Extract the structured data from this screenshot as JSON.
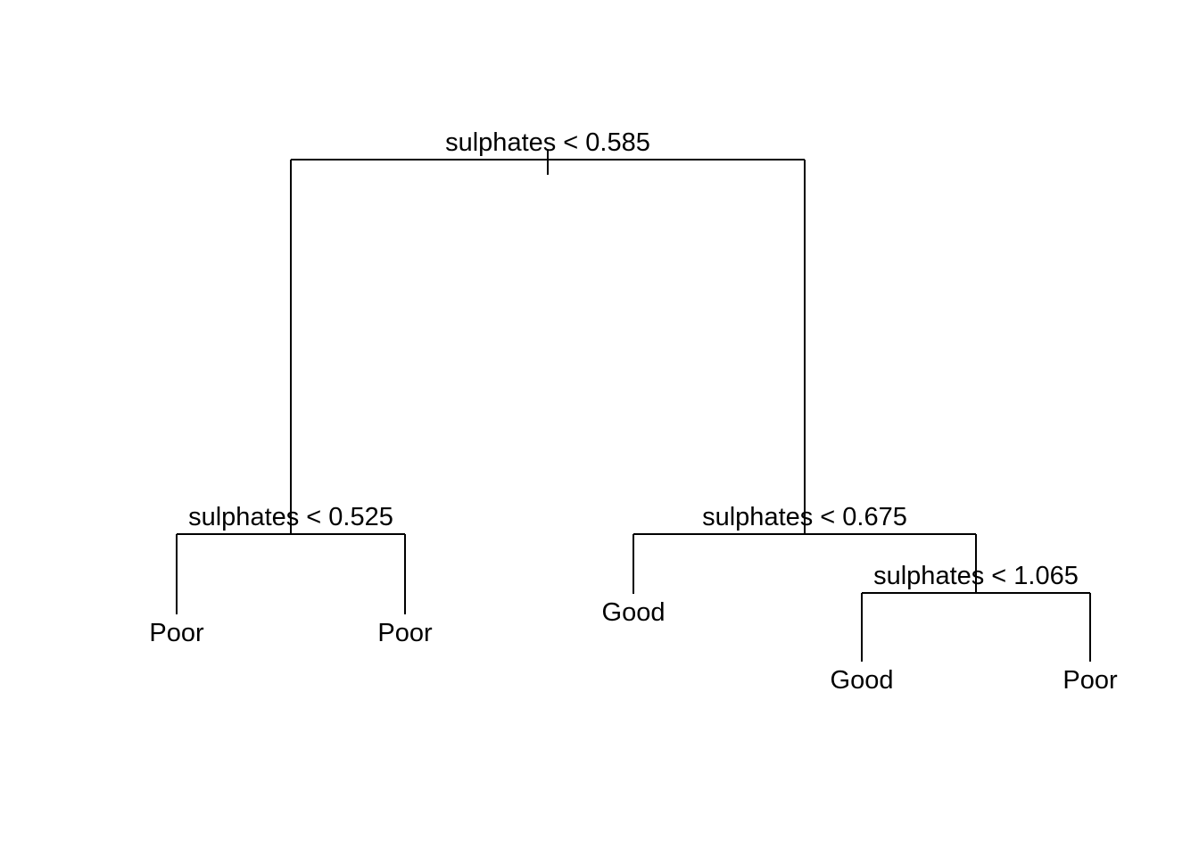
{
  "tree": {
    "splits": {
      "root": "sulphates < 0.585",
      "left": "sulphates < 0.525",
      "right": "sulphates < 0.675",
      "right_right": "sulphates < 1.065"
    },
    "leaves": {
      "left_left": "Poor",
      "left_right": "Poor",
      "right_left": "Good",
      "right_right_left": "Good",
      "right_right_right": "Poor"
    }
  }
}
